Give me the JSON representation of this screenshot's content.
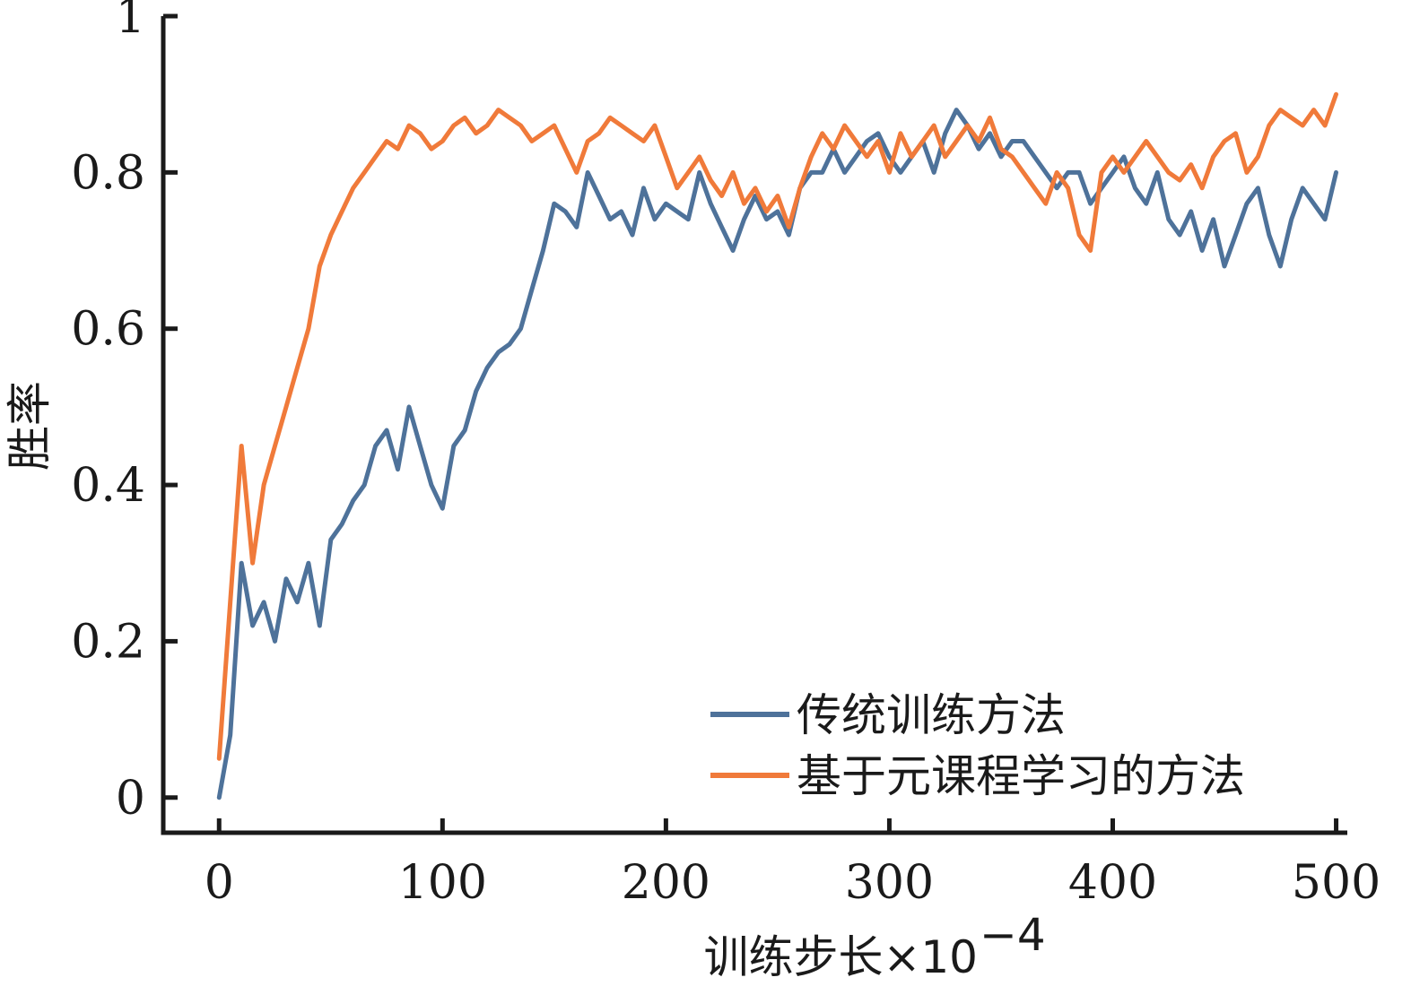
{
  "chart_data": {
    "type": "line",
    "title": "",
    "xlabel": "训练步长×10",
    "xlabel_sup": "−4",
    "ylabel": "胜率",
    "xlim": [
      -25,
      505
    ],
    "ylim": [
      -0.045,
      1.0
    ],
    "x_ticks": [
      0,
      100,
      200,
      300,
      400,
      500
    ],
    "x_tick_labels": [
      "0",
      "100",
      "200",
      "300",
      "400",
      "500"
    ],
    "y_ticks": [
      0,
      0.2,
      0.4,
      0.6,
      0.8,
      1.0
    ],
    "y_tick_labels": [
      "0",
      "0.2",
      "0.4",
      "0.6",
      "0.8",
      "1"
    ],
    "grid": false,
    "legend_position": "bottom-right",
    "series": [
      {
        "name": "传统训练方法",
        "color": "#4e729a",
        "x": [
          0,
          5,
          10,
          15,
          20,
          25,
          30,
          35,
          40,
          45,
          50,
          55,
          60,
          65,
          70,
          75,
          80,
          85,
          90,
          95,
          100,
          105,
          110,
          115,
          120,
          125,
          130,
          135,
          140,
          145,
          150,
          155,
          160,
          165,
          170,
          175,
          180,
          185,
          190,
          195,
          200,
          205,
          210,
          215,
          220,
          225,
          230,
          235,
          240,
          245,
          250,
          255,
          260,
          265,
          270,
          275,
          280,
          285,
          290,
          295,
          300,
          305,
          310,
          315,
          320,
          325,
          330,
          335,
          340,
          345,
          350,
          355,
          360,
          365,
          370,
          375,
          380,
          385,
          390,
          395,
          400,
          405,
          410,
          415,
          420,
          425,
          430,
          435,
          440,
          445,
          450,
          455,
          460,
          465,
          470,
          475,
          480,
          485,
          490,
          495,
          500
        ],
        "y": [
          0.0,
          0.08,
          0.3,
          0.22,
          0.25,
          0.2,
          0.28,
          0.25,
          0.3,
          0.22,
          0.33,
          0.35,
          0.38,
          0.4,
          0.45,
          0.47,
          0.42,
          0.5,
          0.45,
          0.4,
          0.37,
          0.45,
          0.47,
          0.52,
          0.55,
          0.57,
          0.58,
          0.6,
          0.65,
          0.7,
          0.76,
          0.75,
          0.73,
          0.8,
          0.77,
          0.74,
          0.75,
          0.72,
          0.78,
          0.74,
          0.76,
          0.75,
          0.74,
          0.8,
          0.76,
          0.73,
          0.7,
          0.74,
          0.77,
          0.74,
          0.75,
          0.72,
          0.78,
          0.8,
          0.8,
          0.83,
          0.8,
          0.82,
          0.84,
          0.85,
          0.82,
          0.8,
          0.82,
          0.84,
          0.8,
          0.85,
          0.88,
          0.86,
          0.83,
          0.85,
          0.82,
          0.84,
          0.84,
          0.82,
          0.8,
          0.78,
          0.8,
          0.8,
          0.76,
          0.78,
          0.8,
          0.82,
          0.78,
          0.76,
          0.8,
          0.74,
          0.72,
          0.75,
          0.7,
          0.74,
          0.68,
          0.72,
          0.76,
          0.78,
          0.72,
          0.68,
          0.74,
          0.78,
          0.76,
          0.74,
          0.8
        ]
      },
      {
        "name": "基于元课程学习的方法",
        "color": "#f07a3a",
        "x": [
          0,
          5,
          10,
          15,
          20,
          25,
          30,
          35,
          40,
          45,
          50,
          55,
          60,
          65,
          70,
          75,
          80,
          85,
          90,
          95,
          100,
          105,
          110,
          115,
          120,
          125,
          130,
          135,
          140,
          145,
          150,
          155,
          160,
          165,
          170,
          175,
          180,
          185,
          190,
          195,
          200,
          205,
          210,
          215,
          220,
          225,
          230,
          235,
          240,
          245,
          250,
          255,
          260,
          265,
          270,
          275,
          280,
          285,
          290,
          295,
          300,
          305,
          310,
          315,
          320,
          325,
          330,
          335,
          340,
          345,
          350,
          355,
          360,
          365,
          370,
          375,
          380,
          385,
          390,
          395,
          400,
          405,
          410,
          415,
          420,
          425,
          430,
          435,
          440,
          445,
          450,
          455,
          460,
          465,
          470,
          475,
          480,
          485,
          490,
          495,
          500
        ],
        "y": [
          0.05,
          0.25,
          0.45,
          0.3,
          0.4,
          0.45,
          0.5,
          0.55,
          0.6,
          0.68,
          0.72,
          0.75,
          0.78,
          0.8,
          0.82,
          0.84,
          0.83,
          0.86,
          0.85,
          0.83,
          0.84,
          0.86,
          0.87,
          0.85,
          0.86,
          0.88,
          0.87,
          0.86,
          0.84,
          0.85,
          0.86,
          0.83,
          0.8,
          0.84,
          0.85,
          0.87,
          0.86,
          0.85,
          0.84,
          0.86,
          0.82,
          0.78,
          0.8,
          0.82,
          0.79,
          0.77,
          0.8,
          0.76,
          0.78,
          0.75,
          0.77,
          0.73,
          0.78,
          0.82,
          0.85,
          0.83,
          0.86,
          0.84,
          0.82,
          0.84,
          0.8,
          0.85,
          0.82,
          0.84,
          0.86,
          0.82,
          0.84,
          0.86,
          0.84,
          0.87,
          0.83,
          0.82,
          0.8,
          0.78,
          0.76,
          0.8,
          0.78,
          0.72,
          0.7,
          0.8,
          0.82,
          0.8,
          0.82,
          0.84,
          0.82,
          0.8,
          0.79,
          0.81,
          0.78,
          0.82,
          0.84,
          0.85,
          0.8,
          0.82,
          0.86,
          0.88,
          0.87,
          0.86,
          0.88,
          0.86,
          0.9
        ]
      }
    ]
  }
}
